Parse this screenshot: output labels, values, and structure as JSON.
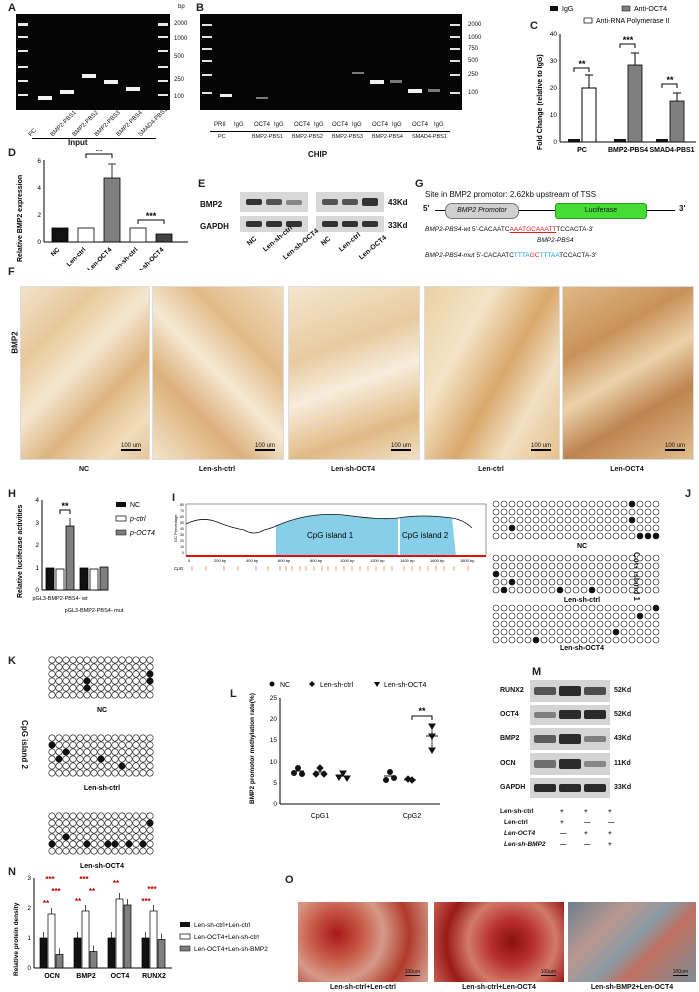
{
  "panels": {
    "A": "A",
    "B": "B",
    "C": "C",
    "D": "D",
    "E": "E",
    "F": "F",
    "G": "G",
    "H": "H",
    "I": "I",
    "J": "J",
    "K": "K",
    "L": "L",
    "M": "M",
    "N": "N",
    "O": "O"
  },
  "gelA": {
    "bp_unit": "bp",
    "ladder": [
      "2000",
      "1000",
      "500",
      "250",
      "100"
    ],
    "lanes": [
      "PC",
      "BMP2-PBS1",
      "BMP2-PBS2",
      "BMP2-PBS3",
      "BMP2-PBS4",
      "SMAD4-PBS1"
    ],
    "group": "Input"
  },
  "gelB": {
    "ladder": [
      "2000",
      "1000",
      "750",
      "500",
      "250",
      "100"
    ],
    "lanes": [
      "PRII",
      "IgG",
      "OCT4",
      "IgG",
      "OCT4",
      "IgG",
      "OCT4",
      "IgG",
      "OCT4",
      "IgG",
      "OCT4",
      "IgG"
    ],
    "groups": [
      "PC",
      "BMP2-PBS1",
      "BMP2-PBS2",
      "BMP2-PBS3",
      "BMP2-PBS4",
      "SMAD4-PBS1"
    ],
    "group": "CHIP"
  },
  "chartC": {
    "ylabel": "Fold Change (relative to IgG)",
    "yticks": [
      "0",
      "10",
      "20",
      "30",
      "40"
    ],
    "legend": [
      "IgG",
      "Anti-RNA Polymerase II",
      "Anti-OCT4"
    ],
    "sig": [
      "**",
      "***",
      "**"
    ],
    "colors": {
      "igg": "#111111",
      "pol2": "#ffffff",
      "oct4": "#7f7f7f"
    }
  },
  "chart_data": [
    {
      "type": "bar",
      "title": "",
      "ylabel": "Fold Change (relative to IgG)",
      "categories": [
        "PC",
        "BMP2-PBS4",
        "SMAD4-PBS1"
      ],
      "series": [
        {
          "name": "IgG",
          "values": [
            1,
            1,
            1
          ]
        },
        {
          "name": "Anti-RNA Polymerase II",
          "values": [
            20,
            0,
            0
          ]
        },
        {
          "name": "Anti-OCT4",
          "values": [
            0,
            28.5,
            15
          ]
        }
      ],
      "ylim": [
        0,
        40
      ]
    },
    {
      "type": "bar",
      "ylabel": "Relative BMP2 expression",
      "categories": [
        "NC",
        "Len-ctrl",
        "Len-OCT4",
        "Len-sh-ctrl",
        "Len-sh-OCT4"
      ],
      "values": [
        1.0,
        1.0,
        4.7,
        1.05,
        0.6
      ],
      "ylim": [
        0,
        6
      ]
    },
    {
      "type": "bar",
      "ylabel": "Relative luciferase activities",
      "categories": [
        "pGL3-BMP2-PBS4- wt",
        "pGL3-BMP2-PBS4- mut"
      ],
      "series": [
        {
          "name": "NC",
          "values": [
            1.0,
            1.0
          ]
        },
        {
          "name": "p-ctrl",
          "values": [
            0.95,
            0.95
          ]
        },
        {
          "name": "p-OCT4",
          "values": [
            2.85,
            1.05
          ]
        }
      ],
      "ylim": [
        0,
        4
      ]
    },
    {
      "type": "scatter",
      "ylabel": "BMP2 promotor methylation rate(%)",
      "categories": [
        "CpG1",
        "CpG2"
      ],
      "series": [
        {
          "name": "NC",
          "values": [
            8,
            6.5
          ]
        },
        {
          "name": "Len-sh-ctrl",
          "values": [
            7.5,
            5.5
          ]
        },
        {
          "name": "Len-sh-OCT4",
          "values": [
            6.5,
            16.5
          ]
        }
      ],
      "ylim": [
        0,
        25
      ]
    },
    {
      "type": "bar",
      "ylabel": "Relative protein density",
      "categories": [
        "OCN",
        "BMP2",
        "OCT4",
        "RUNX2"
      ],
      "series": [
        {
          "name": "Len-sh-ctrl+Len-ctrl",
          "values": [
            1.0,
            1.0,
            1.0,
            1.0
          ]
        },
        {
          "name": "Len-OCT4+Len-sh-ctrl",
          "values": [
            1.8,
            1.9,
            2.3,
            1.9
          ]
        },
        {
          "name": "Len-OCT4+Len-sh-BMP2",
          "values": [
            0.45,
            0.55,
            2.1,
            0.95
          ]
        }
      ],
      "ylim": [
        0,
        3
      ]
    }
  ],
  "chartD": {
    "ylabel": "Relative BMP2 expression",
    "yticks": [
      "0",
      "2",
      "4",
      "6"
    ],
    "xlabels": [
      "NC",
      "Len-ctrl",
      "Len-OCT4",
      "Len-sh-ctrl",
      "Len-sh-OCT4"
    ],
    "sig": [
      "**",
      "***"
    ]
  },
  "blotE": {
    "rows": [
      "BMP2",
      "GAPDH"
    ],
    "sizes": [
      "43Kd",
      "33Kd"
    ],
    "lanes1": [
      "NC",
      "Len-sh-ctrl",
      "Len-sh-OCT4"
    ],
    "lanes2": [
      "NC",
      "Len-ctrl",
      "Len-OCT4"
    ]
  },
  "schemeG": {
    "title": "Site in BMP2 promotor: 2.62kb upstream of TSS",
    "five": "5'",
    "three": "3'",
    "promoter": "BMP2 Promotor",
    "luciferase": "Luciferase",
    "wt_label": "BMP2-PBS4-wt",
    "wt_seq_a": "5'-CACAATC",
    "wt_seq_b": "AAATGCAAATT",
    "wt_seq_c": "TCCACTA-3'",
    "site_label": "BMP2-PBS4",
    "mut_label": "BMP2-PBS4-mut",
    "mut_seq_a": "5'-CACAATC",
    "mut_seq_b1": "TTTA",
    "mut_seq_b2": "GC",
    "mut_seq_b3": "TTTAA",
    "mut_seq_c": "TCCACTA-3'"
  },
  "ihcF": {
    "row_label": "BMP2",
    "scale": "100 um",
    "groups": [
      "NC",
      "Len-sh-ctrl",
      "Len-sh-OCT4",
      "Len-ctrl",
      "Len-OCT4"
    ]
  },
  "chartH": {
    "ylabel": "Relative luciferase activities",
    "yticks": [
      "0",
      "1",
      "2",
      "3",
      "4"
    ],
    "xlabels": [
      "pGL3-BMP2-PBS4- wt",
      "pGL3-BMP2-PBS4- mut"
    ],
    "legend": [
      "NC",
      "p-ctrl",
      "p-OCT4"
    ],
    "sig": "**"
  },
  "cpgI": {
    "ylabel": "GC Percentage",
    "island1": "CpG island 1",
    "island2": "CpG island 2",
    "cpg": "CpG",
    "xticks": [
      "0",
      "200 bp",
      "400 bp",
      "600 bp",
      "800 bp",
      "1000 bp",
      "1200 bp",
      "1400 bp",
      "1600 bp",
      "1800 bp"
    ],
    "yticks": [
      "80",
      "70",
      "60",
      "50",
      "40",
      "30",
      "20",
      "10",
      "0"
    ]
  },
  "methylJ": {
    "side": "CpG island 1",
    "groups": [
      "NC",
      "Len-sh-ctrl",
      "Len-sh-OCT4"
    ]
  },
  "methylK": {
    "side": "CpG island 2",
    "groups": [
      "NC",
      "Len-sh-ctrl",
      "Len-sh-OCT4"
    ]
  },
  "chartL": {
    "ylabel": "BMP2 promotor methylation rate(%)",
    "yticks": [
      "0",
      "5",
      "10",
      "15",
      "20",
      "25"
    ],
    "xlabels": [
      "CpG1",
      "CpG2"
    ],
    "legend": [
      "NC",
      "Len-sh-ctrl",
      "Len-sh-OCT4"
    ],
    "sig": "**"
  },
  "blotM": {
    "rows": [
      "RUNX2",
      "OCT4",
      "BMP2",
      "OCN",
      "GAPDH"
    ],
    "sizes": [
      "52Kd",
      "52Kd",
      "43Kd",
      "11Kd",
      "33Kd"
    ],
    "conds": [
      "Len-sh-ctrl",
      "Len-ctrl",
      "Len-OCT4",
      "Len-sh-BMP2"
    ],
    "signs": [
      [
        "+",
        "+",
        "+"
      ],
      [
        "+",
        "—",
        "—"
      ],
      [
        "—",
        "+",
        "+"
      ],
      [
        "—",
        "—",
        "+"
      ]
    ]
  },
  "chartN": {
    "ylabel": "Relative protein density",
    "yticks": [
      "0",
      "1",
      "2",
      "3"
    ],
    "xlabels": [
      "OCN",
      "BMP2",
      "OCT4",
      "RUNX2"
    ],
    "legend": [
      "Len-sh-ctrl+Len-ctrl",
      "Len-OCT4+Len-sh-ctrl",
      "Len-OCT4+Len-sh-BMP2"
    ]
  },
  "stainO": {
    "scale": "100um",
    "groups": [
      "Len-sh-ctrl+Len-ctrl",
      "Len-sh-ctrl+Len-OCT4",
      "Len-sh-BMP2+Len-OCT4"
    ]
  }
}
